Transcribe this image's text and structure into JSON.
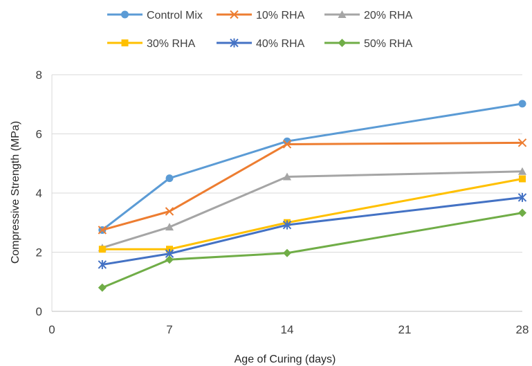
{
  "chart_data": {
    "type": "line",
    "title": "",
    "xlabel": "Age of Curing (days)",
    "ylabel": "Compressive Strength (MPa)",
    "xlim": [
      0,
      28
    ],
    "ylim": [
      0,
      8
    ],
    "xticks": [
      0,
      7,
      14,
      21,
      28
    ],
    "yticks": [
      0,
      2,
      4,
      6,
      8
    ],
    "grid": "horizontal",
    "legend_position": "top",
    "x": [
      3,
      7,
      14,
      28
    ],
    "series": [
      {
        "name": "Control Mix",
        "values": [
          2.75,
          4.5,
          5.75,
          7.02
        ],
        "color": "#5B9BD5",
        "marker": "circle"
      },
      {
        "name": "10% RHA",
        "values": [
          2.75,
          3.38,
          5.65,
          5.7
        ],
        "color": "#ED7D31",
        "marker": "x"
      },
      {
        "name": "20% RHA",
        "values": [
          2.15,
          2.85,
          4.55,
          4.73
        ],
        "color": "#A5A5A5",
        "marker": "triangle"
      },
      {
        "name": "30% RHA",
        "values": [
          2.1,
          2.1,
          3.0,
          4.48
        ],
        "color": "#FFC000",
        "marker": "square"
      },
      {
        "name": "40% RHA",
        "values": [
          1.58,
          1.95,
          2.92,
          3.85
        ],
        "color": "#4472C4",
        "marker": "star"
      },
      {
        "name": "50% RHA",
        "values": [
          0.8,
          1.75,
          1.97,
          3.33
        ],
        "color": "#70AD47",
        "marker": "diamond"
      }
    ]
  }
}
